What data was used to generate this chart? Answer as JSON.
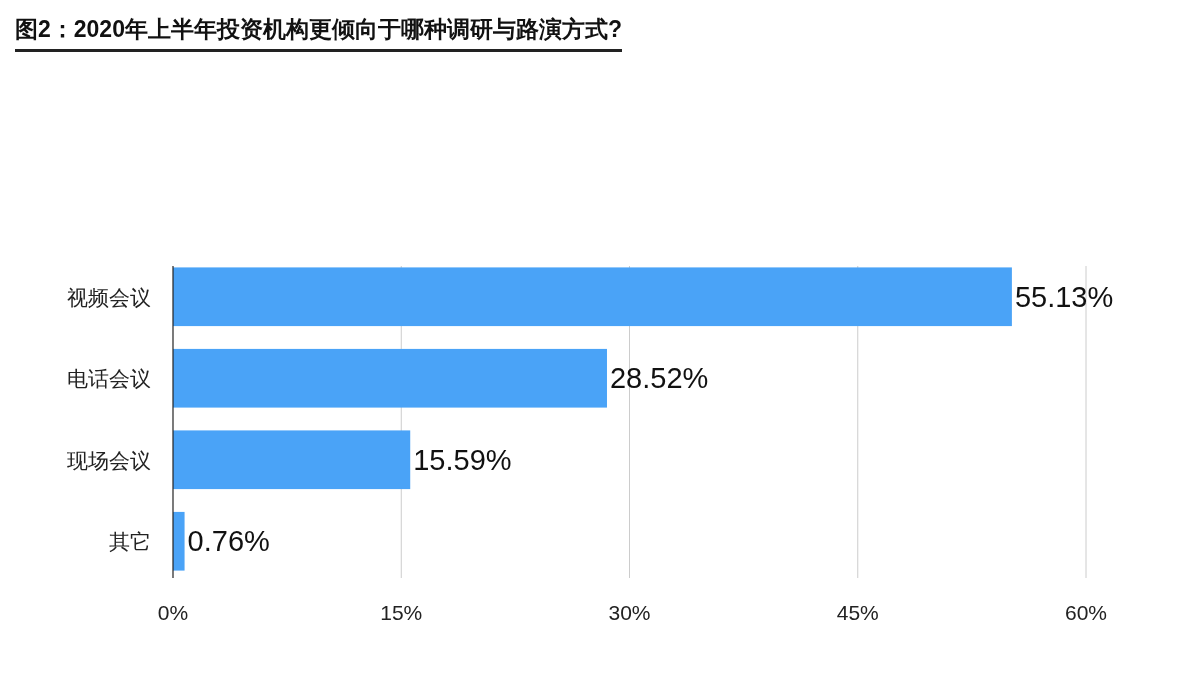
{
  "chart_data": {
    "type": "bar",
    "orientation": "horizontal",
    "title": "图2：2020年上半年投资机构更倾向于哪种调研与路演方式?",
    "categories": [
      "视频会议",
      "电话会议",
      "现场会议",
      "其它"
    ],
    "values": [
      55.13,
      28.52,
      15.59,
      0.76
    ],
    "value_labels": [
      "55.13%",
      "28.52%",
      "15.59%",
      "0.76%"
    ],
    "color": "#4aa3f7",
    "xlim": [
      0,
      60
    ],
    "xticks": [
      {
        "value": 0,
        "label": "0%"
      },
      {
        "value": 15,
        "label": "15%"
      },
      {
        "value": 30,
        "label": "30%"
      },
      {
        "value": 45,
        "label": "45%"
      },
      {
        "value": 60,
        "label": "60%"
      }
    ],
    "grid": "x"
  }
}
